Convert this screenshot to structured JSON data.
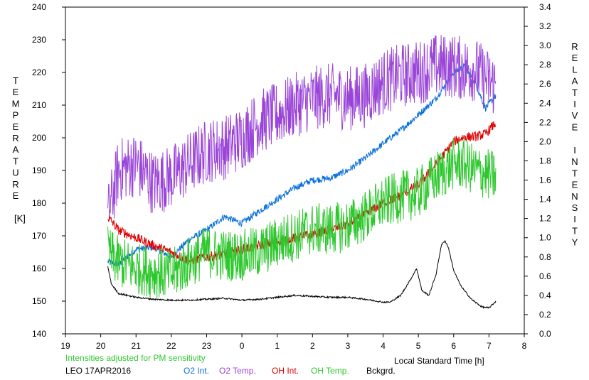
{
  "chart_data": {
    "type": "line",
    "left_axis": {
      "label_letters": [
        "T",
        "E",
        "M",
        "P",
        "E",
        "R",
        "A",
        "T",
        "U",
        "R",
        "E"
      ],
      "unit": "[K]",
      "ylim": [
        140,
        240
      ],
      "ticks": [
        140,
        150,
        160,
        170,
        180,
        190,
        200,
        210,
        220,
        230,
        240
      ]
    },
    "right_axis": {
      "label_word1": [
        "R",
        "E",
        "L",
        "A",
        "T",
        "I",
        "V",
        "E"
      ],
      "label_word2": [
        "I",
        "N",
        "T",
        "E",
        "N",
        "S",
        "I",
        "T",
        "Y"
      ],
      "ylim": [
        0.0,
        3.4
      ],
      "ticks": [
        "0.0",
        "0.2",
        "0.4",
        "0.6",
        "0.8",
        "1.0",
        "1.2",
        "1.4",
        "1.6",
        "1.8",
        "2.0",
        "2.2",
        "2.4",
        "2.6",
        "2.8",
        "3.0",
        "3.2",
        "3.4"
      ]
    },
    "x_axis": {
      "label": "Local Standard Time [h]",
      "xlim": [
        19,
        8
      ],
      "tick_labels": [
        "19",
        "20",
        "21",
        "22",
        "23",
        "0",
        "1",
        "2",
        "3",
        "4",
        "5",
        "6",
        "7",
        "8"
      ]
    },
    "note": "Intensities adjusted for PM sensitivity",
    "station": "LEO 17APR2016",
    "colors": {
      "o2_int": "#0a6fdc",
      "o2_temp": "#9a45d8",
      "oh_int": "#e00000",
      "oh_temp": "#2ec82e",
      "bckgrd": "#000000",
      "note": "#2ec82e"
    },
    "series": [
      {
        "name": "O2 Int.",
        "axis": "right",
        "x": [
          "20.2",
          "20.5",
          "21.0",
          "21.5",
          "22.0",
          "22.5",
          "23.0",
          "23.5",
          "0.0",
          "0.5",
          "1.0",
          "1.5",
          "2.0",
          "2.5",
          "3.0",
          "3.5",
          "4.0",
          "4.5",
          "5.0",
          "5.5",
          "6.0",
          "6.3",
          "6.6",
          "6.9",
          "7.2"
        ],
        "y": [
          0.75,
          0.72,
          0.88,
          0.9,
          0.8,
          0.98,
          1.08,
          1.22,
          1.15,
          1.28,
          1.4,
          1.52,
          1.6,
          1.62,
          1.7,
          1.83,
          1.98,
          2.12,
          2.28,
          2.45,
          2.72,
          2.78,
          2.62,
          2.35,
          2.48
        ]
      },
      {
        "name": "O2 Temp.",
        "axis": "left",
        "x": [
          "20.2",
          "20.5",
          "21.0",
          "21.5",
          "22.0",
          "22.5",
          "23.0",
          "23.5",
          "0.0",
          "0.5",
          "1.0",
          "1.5",
          "2.0",
          "2.5",
          "3.0",
          "3.5",
          "4.0",
          "4.5",
          "5.0",
          "5.5",
          "6.0",
          "6.3",
          "6.6",
          "6.9",
          "7.2"
        ],
        "y": [
          176,
          190,
          192,
          186,
          188,
          192,
          196,
          197,
          200,
          205,
          207,
          210,
          212,
          213,
          212,
          213,
          217,
          219,
          220,
          222,
          222,
          221,
          221,
          218,
          216
        ]
      },
      {
        "name": "OH Int.",
        "axis": "right",
        "x": [
          "20.2",
          "20.5",
          "21.0",
          "21.5",
          "22.0",
          "22.5",
          "23.0",
          "23.5",
          "0.0",
          "0.5",
          "1.0",
          "1.5",
          "2.0",
          "2.5",
          "3.0",
          "3.5",
          "4.0",
          "4.5",
          "5.0",
          "5.5",
          "6.0",
          "6.3",
          "6.6",
          "6.9",
          "7.2"
        ],
        "y": [
          1.22,
          1.08,
          1.0,
          0.92,
          0.85,
          0.76,
          0.8,
          0.83,
          0.88,
          0.92,
          0.96,
          1.0,
          1.04,
          1.08,
          1.14,
          1.24,
          1.36,
          1.44,
          1.55,
          1.76,
          2.0,
          2.05,
          2.05,
          2.08,
          2.2
        ]
      },
      {
        "name": "OH Temp.",
        "axis": "left",
        "x": [
          "20.2",
          "20.5",
          "21.0",
          "21.5",
          "22.0",
          "22.5",
          "23.0",
          "23.5",
          "0.0",
          "0.5",
          "1.0",
          "1.5",
          "2.0",
          "2.5",
          "3.0",
          "3.5",
          "4.0",
          "4.5",
          "5.0",
          "5.5",
          "6.0",
          "6.3",
          "6.6",
          "6.9",
          "7.2"
        ],
        "y": [
          165,
          162,
          160,
          159,
          158,
          162,
          165,
          164,
          164,
          165,
          168,
          170,
          172,
          172,
          173,
          176,
          180,
          182,
          183,
          188,
          192,
          192,
          190,
          189,
          188
        ]
      },
      {
        "name": "Bckgrd.",
        "axis": "right",
        "x": [
          "20.2",
          "20.3",
          "20.5",
          "21.0",
          "21.5",
          "22.0",
          "22.5",
          "23.0",
          "23.5",
          "0.0",
          "0.5",
          "1.0",
          "1.5",
          "2.0",
          "2.5",
          "3.0",
          "3.5",
          "4.0",
          "4.2",
          "4.5",
          "4.8",
          "4.95",
          "5.1",
          "5.3",
          "5.5",
          "5.65",
          "5.75",
          "5.85",
          "6.0",
          "6.2",
          "6.5",
          "6.8",
          "7.0",
          "7.2"
        ],
        "y": [
          0.7,
          0.52,
          0.42,
          0.38,
          0.36,
          0.35,
          0.35,
          0.36,
          0.37,
          0.35,
          0.36,
          0.38,
          0.4,
          0.39,
          0.38,
          0.38,
          0.36,
          0.33,
          0.33,
          0.4,
          0.58,
          0.68,
          0.45,
          0.4,
          0.62,
          0.92,
          0.97,
          0.9,
          0.66,
          0.5,
          0.36,
          0.28,
          0.27,
          0.34
        ]
      }
    ]
  }
}
